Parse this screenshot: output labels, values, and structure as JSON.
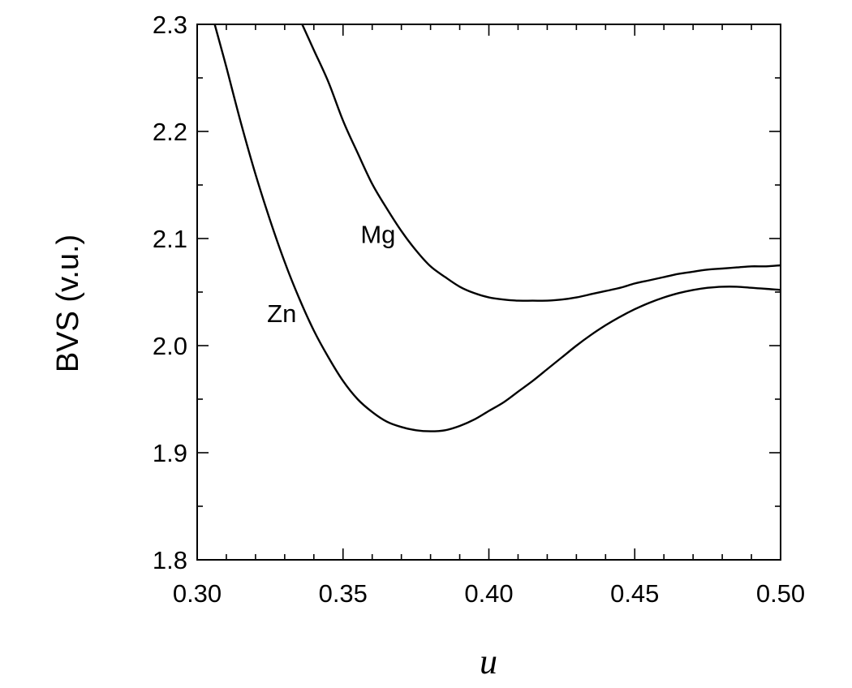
{
  "chart_data": {
    "type": "line",
    "title": "",
    "xlabel": "u",
    "ylabel": "BVS (v.u.)",
    "xlim": [
      0.3,
      0.5
    ],
    "ylim": [
      1.8,
      2.3
    ],
    "x_ticks": [
      "0.30",
      "0.35",
      "0.40",
      "0.45",
      "0.50"
    ],
    "y_ticks": [
      "1.8",
      "1.9",
      "2.0",
      "2.1",
      "2.2",
      "2.3"
    ],
    "grid": false,
    "legend": "none",
    "series": [
      {
        "name": "Mg",
        "x": [
          0.336,
          0.34,
          0.345,
          0.35,
          0.355,
          0.36,
          0.365,
          0.37,
          0.375,
          0.38,
          0.385,
          0.39,
          0.395,
          0.4,
          0.405,
          0.41,
          0.415,
          0.42,
          0.425,
          0.43,
          0.435,
          0.44,
          0.445,
          0.45,
          0.455,
          0.46,
          0.465,
          0.47,
          0.475,
          0.48,
          0.485,
          0.49,
          0.495,
          0.5
        ],
        "y": [
          2.3,
          2.276,
          2.246,
          2.21,
          2.18,
          2.151,
          2.128,
          2.107,
          2.089,
          2.074,
          2.064,
          2.055,
          2.049,
          2.045,
          2.043,
          2.042,
          2.042,
          2.042,
          2.043,
          2.045,
          2.048,
          2.051,
          2.054,
          2.058,
          2.061,
          2.064,
          2.067,
          2.069,
          2.071,
          2.072,
          2.073,
          2.074,
          2.074,
          2.075
        ]
      },
      {
        "name": "Zn",
        "x": [
          0.306,
          0.31,
          0.315,
          0.32,
          0.325,
          0.33,
          0.335,
          0.34,
          0.345,
          0.35,
          0.355,
          0.36,
          0.365,
          0.37,
          0.375,
          0.38,
          0.385,
          0.39,
          0.395,
          0.4,
          0.405,
          0.41,
          0.415,
          0.42,
          0.425,
          0.43,
          0.435,
          0.44,
          0.445,
          0.45,
          0.455,
          0.46,
          0.465,
          0.47,
          0.475,
          0.48,
          0.485,
          0.49,
          0.495,
          0.5
        ],
        "y": [
          2.3,
          2.26,
          2.208,
          2.16,
          2.117,
          2.078,
          2.044,
          2.014,
          1.989,
          1.967,
          1.95,
          1.938,
          1.929,
          1.924,
          1.921,
          1.92,
          1.921,
          1.925,
          1.931,
          1.939,
          1.947,
          1.957,
          1.967,
          1.978,
          1.989,
          2.0,
          2.01,
          2.019,
          2.027,
          2.034,
          2.04,
          2.045,
          2.049,
          2.052,
          2.054,
          2.055,
          2.055,
          2.054,
          2.053,
          2.052
        ]
      }
    ],
    "annotations": [
      {
        "text": "Mg",
        "series": "Mg",
        "x": 0.362,
        "y": 2.096
      },
      {
        "text": "Zn",
        "series": "Zn",
        "x": 0.329,
        "y": 2.022
      }
    ],
    "colors": {
      "line": "#000000",
      "axis": "#000000"
    }
  }
}
